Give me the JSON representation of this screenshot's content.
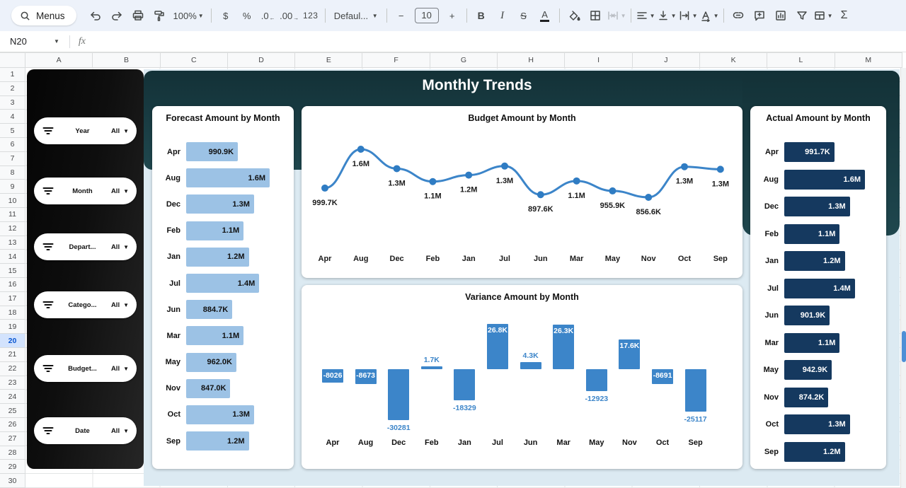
{
  "toolbar": {
    "menus": "Menus",
    "zoom": "100%",
    "currency": "$",
    "percent": "%",
    "decimal_decrease": ".0",
    "decimal_increase": ".00",
    "format_number": "123",
    "font_family": "Defaul...",
    "font_size": "10",
    "bold": "B",
    "italic": "I",
    "strikethrough": "S",
    "text_color": "A",
    "functions": "Σ"
  },
  "formula_bar": {
    "cell_reference": "N20",
    "fx_label": "fx"
  },
  "grid": {
    "columns": [
      "A",
      "B",
      "C",
      "D",
      "E",
      "F",
      "G",
      "H",
      "I",
      "J",
      "K",
      "L",
      "M"
    ],
    "rows": [
      "1",
      "2",
      "3",
      "4",
      "5",
      "6",
      "7",
      "8",
      "9",
      "10",
      "11",
      "12",
      "13",
      "14",
      "15",
      "16",
      "17",
      "18",
      "19",
      "20",
      "21",
      "22",
      "23",
      "24",
      "25",
      "26",
      "27",
      "28",
      "29",
      "30"
    ],
    "selected_row": "20"
  },
  "dashboard": {
    "title": "Monthly Trends",
    "filters": [
      {
        "label": "Year",
        "value": "All"
      },
      {
        "label": "Month",
        "value": "All"
      },
      {
        "label": "Depart...",
        "value": "All"
      },
      {
        "label": "Catego...",
        "value": "All"
      },
      {
        "label": "Budget...",
        "value": "All"
      },
      {
        "label": "Date",
        "value": "All"
      }
    ],
    "colors": {
      "header_teal": "#1b4147",
      "canvas_blue": "#dceaf2",
      "sidebar_black": "#0d0d0d",
      "forecast_bar": "#9cc2e5",
      "actual_bar": "#15395f",
      "accent_blue": "#3c85c9"
    }
  },
  "chart_data": [
    {
      "type": "bar",
      "orientation": "horizontal",
      "title": "Forecast Amount by Month",
      "categories": [
        "Apr",
        "Aug",
        "Dec",
        "Feb",
        "Jan",
        "Jul",
        "Jun",
        "Mar",
        "May",
        "Nov",
        "Oct",
        "Sep"
      ],
      "values": [
        990900,
        1600000,
        1300000,
        1100000,
        1200000,
        1400000,
        884700,
        1100000,
        962000,
        847000,
        1300000,
        1200000
      ],
      "labels": [
        "990.9K",
        "1.6M",
        "1.3M",
        "1.1M",
        "1.2M",
        "1.4M",
        "884.7K",
        "1.1M",
        "962.0K",
        "847.0K",
        "1.3M",
        "1.2M"
      ],
      "xlim": [
        0,
        1600000
      ],
      "bar_color": "#9cc2e5",
      "value_label_color": "#111111"
    },
    {
      "type": "line",
      "title": "Budget Amount by Month",
      "categories": [
        "Apr",
        "Aug",
        "Dec",
        "Feb",
        "Jan",
        "Jul",
        "Jun",
        "Mar",
        "May",
        "Nov",
        "Oct",
        "Sep"
      ],
      "values": [
        999700,
        1600000,
        1300000,
        1100000,
        1200000,
        1340000,
        897600,
        1110000,
        955900,
        856600,
        1330000,
        1290000
      ],
      "labels": [
        "999.7K",
        "1.6M",
        "1.3M",
        "1.1M",
        "1.2M",
        "1.3M",
        "897.6K",
        "1.1M",
        "955.9K",
        "856.6K",
        "1.3M",
        "1.3M"
      ],
      "line_color": "#3c85c9",
      "legend": "none",
      "grid": "off"
    },
    {
      "type": "bar",
      "title": "Variance Amount by Month",
      "categories": [
        "Apr",
        "Aug",
        "Dec",
        "Feb",
        "Jan",
        "Jul",
        "Jun",
        "Mar",
        "May",
        "Nov",
        "Oct",
        "Sep"
      ],
      "values": [
        -8026,
        -8673,
        -30281,
        1700,
        -18329,
        26800,
        4300,
        26300,
        -12923,
        17600,
        -8691,
        -25117
      ],
      "labels": [
        "-8026",
        "-8673",
        "-30281",
        "1.7K",
        "-18329",
        "26.8K",
        "4.3K",
        "26.3K",
        "-12923",
        "17.6K",
        "-8691",
        "-25117"
      ],
      "label_positions": [
        "inside",
        "inside",
        "below",
        "above",
        "below",
        "inside",
        "above",
        "inside",
        "below",
        "inside",
        "inside",
        "below"
      ],
      "ylim": [
        -32000,
        28000
      ],
      "bar_color": "#3c85c9"
    },
    {
      "type": "bar",
      "orientation": "horizontal",
      "title": "Actual Amount by Month",
      "categories": [
        "Apr",
        "Aug",
        "Dec",
        "Feb",
        "Jan",
        "Jul",
        "Jun",
        "Mar",
        "May",
        "Nov",
        "Oct",
        "Sep"
      ],
      "values": [
        991700,
        1600000,
        1300000,
        1100000,
        1200000,
        1400000,
        901900,
        1100000,
        942900,
        874200,
        1300000,
        1200000
      ],
      "labels": [
        "991.7K",
        "1.6M",
        "1.3M",
        "1.1M",
        "1.2M",
        "1.4M",
        "901.9K",
        "1.1M",
        "942.9K",
        "874.2K",
        "1.3M",
        "1.2M"
      ],
      "xlim": [
        0,
        1600000
      ],
      "bar_color": "#15395f",
      "value_label_color": "#ffffff"
    }
  ]
}
